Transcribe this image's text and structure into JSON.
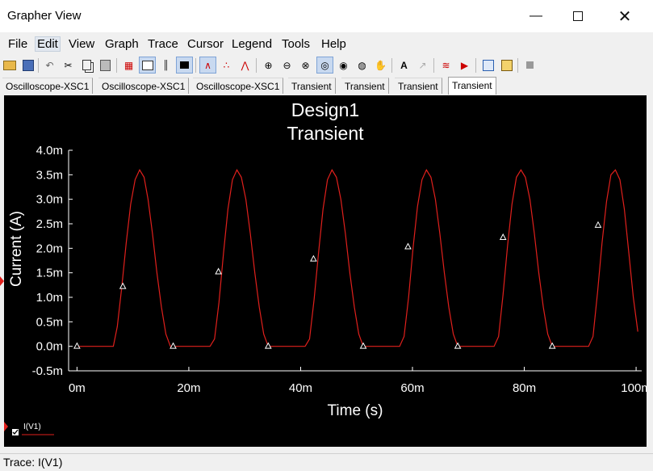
{
  "window": {
    "title": "Grapher View"
  },
  "menu": [
    "File",
    "Edit",
    "View",
    "Graph",
    "Trace",
    "Cursor",
    "Legend",
    "Tools",
    "Help"
  ],
  "tabs": [
    "Oscilloscope-XSC1",
    "Oscilloscope-XSC1",
    "Oscilloscope-XSC1",
    "Transient",
    "Transient",
    "Transient",
    "Transient"
  ],
  "active_tab_index": 6,
  "status": {
    "text": "Trace: I(V1)"
  },
  "legend": {
    "label": "I(V1)"
  },
  "colors": {
    "trace": "#e0201c",
    "plot_bg": "#000000",
    "axis": "#ffffff"
  },
  "chart_data": {
    "type": "line",
    "title": "Design1",
    "subtitle": "Transient",
    "xlabel": "Time (s)",
    "ylabel": "Current (A)",
    "xlim": [
      -1.5,
      101
    ],
    "ylim": [
      -0.5,
      4.0
    ],
    "x_ticks": [
      0,
      20,
      40,
      60,
      80,
      100
    ],
    "x_tick_labels": [
      "0m",
      "20m",
      "40m",
      "60m",
      "80m",
      "100m"
    ],
    "y_ticks": [
      -0.5,
      0,
      0.5,
      1.0,
      1.5,
      2.0,
      2.5,
      3.0,
      3.5,
      4.0
    ],
    "y_tick_labels": [
      "-0.5m",
      "0.0m",
      "0.5m",
      "1.0m",
      "1.5m",
      "2.0m",
      "2.5m",
      "3.0m",
      "3.5m",
      "4.0m"
    ],
    "grid": false,
    "series": [
      {
        "name": "I(V1)",
        "x": [
          0,
          6.5,
          7.2,
          8.0,
          8.8,
          9.6,
          10.4,
          11.2,
          12.0,
          12.7,
          13.5,
          14.3,
          15.1,
          15.9,
          16.7,
          17.4,
          17.8,
          23.8,
          24.6,
          25.4,
          26.2,
          27.0,
          27.8,
          28.6,
          29.4,
          30.2,
          31.0,
          31.8,
          32.6,
          33.4,
          34.2,
          34.8,
          40.8,
          41.6,
          42.4,
          43.2,
          44.0,
          44.8,
          45.6,
          46.4,
          47.2,
          48.0,
          48.8,
          49.6,
          50.4,
          51.2,
          51.8,
          57.7,
          58.5,
          59.3,
          60.1,
          60.9,
          61.7,
          62.5,
          63.3,
          64.1,
          64.9,
          65.7,
          66.5,
          67.3,
          68.1,
          68.7,
          74.6,
          75.4,
          76.2,
          77.0,
          77.8,
          78.6,
          79.4,
          80.2,
          81.0,
          81.8,
          82.6,
          83.4,
          84.2,
          85.0,
          85.6,
          91.5,
          92.3,
          93.1,
          93.9,
          94.7,
          95.5,
          96.3,
          97.1,
          97.9,
          98.7,
          99.5,
          100.3
        ],
        "y": [
          0,
          0,
          0.4,
          1.2,
          2.1,
          2.9,
          3.4,
          3.6,
          3.45,
          3.0,
          2.3,
          1.5,
          0.8,
          0.25,
          0,
          0,
          0,
          0,
          0.15,
          0.9,
          1.9,
          2.8,
          3.4,
          3.6,
          3.45,
          3.0,
          2.3,
          1.5,
          0.8,
          0.25,
          0,
          0,
          0,
          0.15,
          0.95,
          1.9,
          2.8,
          3.4,
          3.6,
          3.45,
          3.0,
          2.3,
          1.5,
          0.8,
          0.25,
          0,
          0,
          0,
          0.2,
          1.0,
          2.0,
          2.85,
          3.4,
          3.6,
          3.45,
          3.0,
          2.3,
          1.5,
          0.8,
          0.25,
          0,
          0,
          0,
          0.2,
          1.05,
          2.05,
          2.9,
          3.45,
          3.6,
          3.45,
          3.0,
          2.3,
          1.5,
          0.8,
          0.25,
          0,
          0,
          0,
          0.2,
          1.1,
          2.1,
          2.95,
          3.5,
          3.6,
          3.4,
          2.8,
          1.9,
          1.0,
          0.3
        ],
        "markers": [
          {
            "x": 0,
            "y": 0
          },
          {
            "x": 8.2,
            "y": 1.22
          },
          {
            "x": 17.2,
            "y": 0
          },
          {
            "x": 25.3,
            "y": 1.52
          },
          {
            "x": 34.2,
            "y": 0
          },
          {
            "x": 42.3,
            "y": 1.78
          },
          {
            "x": 51.2,
            "y": 0
          },
          {
            "x": 59.2,
            "y": 2.03
          },
          {
            "x": 68.1,
            "y": 0
          },
          {
            "x": 76.2,
            "y": 2.22
          },
          {
            "x": 85.0,
            "y": 0
          },
          {
            "x": 93.2,
            "y": 2.47
          }
        ]
      }
    ]
  }
}
